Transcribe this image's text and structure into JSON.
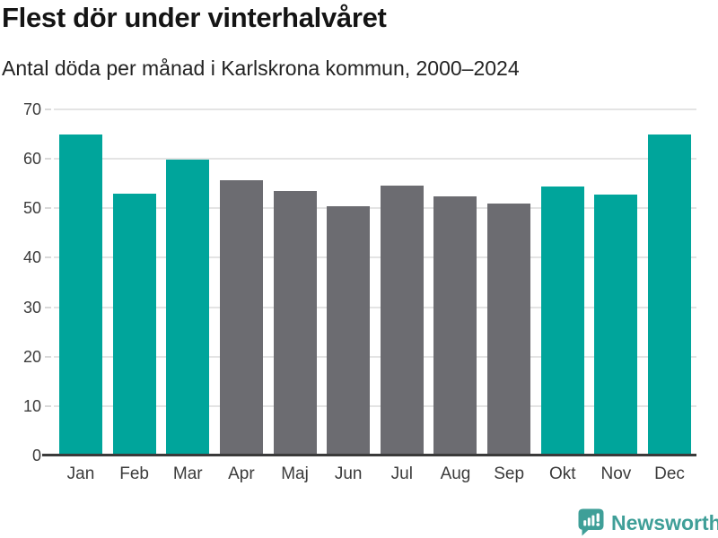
{
  "chart_data": {
    "type": "bar",
    "title": "Flest dör under vinterhalvåret",
    "subtitle": "Antal döda per månad i Karlskrona kommun, 2000–2024",
    "categories": [
      "Jan",
      "Feb",
      "Mar",
      "Apr",
      "Maj",
      "Jun",
      "Jul",
      "Aug",
      "Sep",
      "Okt",
      "Nov",
      "Dec"
    ],
    "values": [
      64.9,
      52.9,
      59.8,
      55.7,
      53.5,
      50.4,
      54.6,
      52.5,
      51.0,
      54.4,
      52.8,
      64.9
    ],
    "bar_palette": [
      "highlight",
      "highlight",
      "highlight",
      "muted",
      "muted",
      "muted",
      "muted",
      "muted",
      "muted",
      "highlight",
      "highlight",
      "highlight"
    ],
    "xlabel": "",
    "ylabel": "",
    "ylim": [
      0,
      70
    ],
    "yticks": [
      0,
      10,
      20,
      30,
      40,
      50,
      60,
      70
    ],
    "grid": true,
    "legend_position": "none",
    "colors": {
      "highlight": "#00a59b",
      "muted": "#6c6c71",
      "gridline": "#e4e4e4",
      "tick": "#d9d9d9",
      "axis_line": "#3a3a3a",
      "axis_label": "#3b3b3b",
      "title": "#141414",
      "subtitle": "#232323"
    }
  },
  "branding": {
    "logo_text": "Newsworthy",
    "logo_color": "#3f9f98",
    "logo_icon": "bar-chart-speech-bubble-icon"
  }
}
